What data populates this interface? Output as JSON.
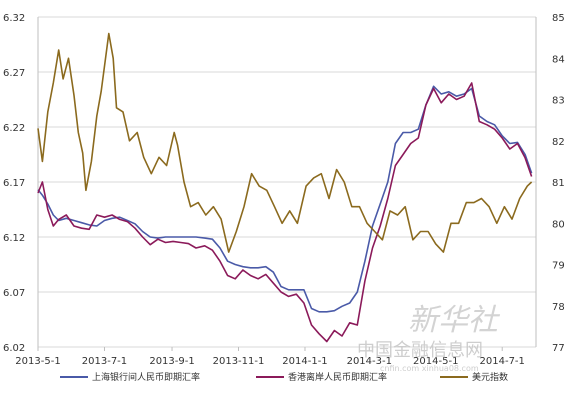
{
  "chart_data": {
    "type": "line",
    "x_ticks": [
      "2013-5-1",
      "2013-7-1",
      "2013-9-1",
      "2013-11-1",
      "2014-1-1",
      "2014-3-1",
      "2014-5-1",
      "2014-7-1"
    ],
    "x_range": [
      "2013-05-01",
      "2014-08-01"
    ],
    "y_left": {
      "ticks": [
        "6.02",
        "6.07",
        "6.12",
        "6.17",
        "6.22",
        "6.27",
        "6.32"
      ],
      "range": [
        6.02,
        6.32
      ]
    },
    "y_right": {
      "ticks": [
        "77",
        "78",
        "79",
        "80",
        "81",
        "82",
        "83",
        "84",
        "85"
      ],
      "range": [
        77,
        85
      ]
    },
    "grid": true,
    "legend_position": "bottom",
    "series": [
      {
        "name": "上海银行间人民币即期汇率",
        "axis": "left",
        "color": "#4a5aa8",
        "points": [
          [
            "2013-05-01",
            6.163
          ],
          [
            "2013-05-05",
            6.158
          ],
          [
            "2013-05-10",
            6.15
          ],
          [
            "2013-05-15",
            6.14
          ],
          [
            "2013-05-20",
            6.135
          ],
          [
            "2013-05-27",
            6.137
          ],
          [
            "2013-06-03",
            6.135
          ],
          [
            "2013-06-10",
            6.133
          ],
          [
            "2013-06-17",
            6.131
          ],
          [
            "2013-06-24",
            6.13
          ],
          [
            "2013-07-01",
            6.135
          ],
          [
            "2013-07-08",
            6.137
          ],
          [
            "2013-07-15",
            6.138
          ],
          [
            "2013-07-22",
            6.135
          ],
          [
            "2013-07-29",
            6.132
          ],
          [
            "2013-08-05",
            6.125
          ],
          [
            "2013-08-12",
            6.12
          ],
          [
            "2013-08-19",
            6.119
          ],
          [
            "2013-08-26",
            6.12
          ],
          [
            "2013-09-02",
            6.12
          ],
          [
            "2013-09-09",
            6.12
          ],
          [
            "2013-09-16",
            6.12
          ],
          [
            "2013-09-23",
            6.12
          ],
          [
            "2013-10-01",
            6.119
          ],
          [
            "2013-10-08",
            6.118
          ],
          [
            "2013-10-15",
            6.11
          ],
          [
            "2013-10-22",
            6.098
          ],
          [
            "2013-10-29",
            6.095
          ],
          [
            "2013-11-05",
            6.093
          ],
          [
            "2013-11-12",
            6.092
          ],
          [
            "2013-11-19",
            6.092
          ],
          [
            "2013-11-26",
            6.093
          ],
          [
            "2013-12-03",
            6.088
          ],
          [
            "2013-12-10",
            6.075
          ],
          [
            "2013-12-17",
            6.072
          ],
          [
            "2013-12-24",
            6.072
          ],
          [
            "2013-12-31",
            6.072
          ],
          [
            "2014-01-07",
            6.055
          ],
          [
            "2014-01-14",
            6.052
          ],
          [
            "2014-01-21",
            6.052
          ],
          [
            "2014-01-28",
            6.053
          ],
          [
            "2014-02-04",
            6.057
          ],
          [
            "2014-02-11",
            6.06
          ],
          [
            "2014-02-18",
            6.07
          ],
          [
            "2014-02-25",
            6.098
          ],
          [
            "2014-03-04",
            6.13
          ],
          [
            "2014-03-11",
            6.15
          ],
          [
            "2014-03-18",
            6.17
          ],
          [
            "2014-03-25",
            6.205
          ],
          [
            "2014-04-01",
            6.215
          ],
          [
            "2014-04-08",
            6.215
          ],
          [
            "2014-04-15",
            6.218
          ],
          [
            "2014-04-22",
            6.24
          ],
          [
            "2014-04-29",
            6.257
          ],
          [
            "2014-05-06",
            6.25
          ],
          [
            "2014-05-13",
            6.252
          ],
          [
            "2014-05-20",
            6.248
          ],
          [
            "2014-05-27",
            6.25
          ],
          [
            "2014-06-03",
            6.255
          ],
          [
            "2014-06-10",
            6.23
          ],
          [
            "2014-06-17",
            6.225
          ],
          [
            "2014-06-24",
            6.222
          ],
          [
            "2014-07-01",
            6.212
          ],
          [
            "2014-07-08",
            6.205
          ],
          [
            "2014-07-15",
            6.206
          ],
          [
            "2014-07-22",
            6.195
          ],
          [
            "2014-07-28",
            6.178
          ]
        ]
      },
      {
        "name": "香港离岸人民币即期汇率",
        "axis": "left",
        "color": "#8b1a5a",
        "points": [
          [
            "2013-05-01",
            6.16
          ],
          [
            "2013-05-05",
            6.17
          ],
          [
            "2013-05-10",
            6.145
          ],
          [
            "2013-05-15",
            6.13
          ],
          [
            "2013-05-20",
            6.136
          ],
          [
            "2013-05-27",
            6.14
          ],
          [
            "2013-06-03",
            6.13
          ],
          [
            "2013-06-10",
            6.128
          ],
          [
            "2013-06-17",
            6.127
          ],
          [
            "2013-06-24",
            6.14
          ],
          [
            "2013-07-01",
            6.138
          ],
          [
            "2013-07-08",
            6.14
          ],
          [
            "2013-07-15",
            6.136
          ],
          [
            "2013-07-22",
            6.134
          ],
          [
            "2013-07-29",
            6.128
          ],
          [
            "2013-08-05",
            6.12
          ],
          [
            "2013-08-12",
            6.113
          ],
          [
            "2013-08-19",
            6.118
          ],
          [
            "2013-08-26",
            6.115
          ],
          [
            "2013-09-02",
            6.116
          ],
          [
            "2013-09-09",
            6.115
          ],
          [
            "2013-09-16",
            6.114
          ],
          [
            "2013-09-23",
            6.11
          ],
          [
            "2013-10-01",
            6.112
          ],
          [
            "2013-10-08",
            6.108
          ],
          [
            "2013-10-15",
            6.098
          ],
          [
            "2013-10-22",
            6.085
          ],
          [
            "2013-10-29",
            6.082
          ],
          [
            "2013-11-05",
            6.09
          ],
          [
            "2013-11-12",
            6.085
          ],
          [
            "2013-11-19",
            6.082
          ],
          [
            "2013-11-26",
            6.086
          ],
          [
            "2013-12-03",
            6.078
          ],
          [
            "2013-12-10",
            6.07
          ],
          [
            "2013-12-17",
            6.066
          ],
          [
            "2013-12-24",
            6.068
          ],
          [
            "2013-12-31",
            6.06
          ],
          [
            "2014-01-07",
            6.04
          ],
          [
            "2014-01-14",
            6.032
          ],
          [
            "2014-01-21",
            6.025
          ],
          [
            "2014-01-28",
            6.035
          ],
          [
            "2014-02-04",
            6.03
          ],
          [
            "2014-02-11",
            6.042
          ],
          [
            "2014-02-18",
            6.04
          ],
          [
            "2014-02-25",
            6.08
          ],
          [
            "2014-03-04",
            6.11
          ],
          [
            "2014-03-11",
            6.13
          ],
          [
            "2014-03-18",
            6.155
          ],
          [
            "2014-03-25",
            6.185
          ],
          [
            "2014-04-01",
            6.195
          ],
          [
            "2014-04-08",
            6.205
          ],
          [
            "2014-04-15",
            6.21
          ],
          [
            "2014-04-22",
            6.24
          ],
          [
            "2014-04-29",
            6.255
          ],
          [
            "2014-05-06",
            6.242
          ],
          [
            "2014-05-13",
            6.25
          ],
          [
            "2014-05-20",
            6.245
          ],
          [
            "2014-05-27",
            6.248
          ],
          [
            "2014-06-03",
            6.26
          ],
          [
            "2014-06-10",
            6.225
          ],
          [
            "2014-06-17",
            6.222
          ],
          [
            "2014-06-24",
            6.218
          ],
          [
            "2014-07-01",
            6.21
          ],
          [
            "2014-07-08",
            6.2
          ],
          [
            "2014-07-15",
            6.205
          ],
          [
            "2014-07-22",
            6.192
          ],
          [
            "2014-07-28",
            6.175
          ]
        ]
      },
      {
        "name": "美元指数",
        "axis": "right",
        "color": "#8b6a1e",
        "points": [
          [
            "2013-05-01",
            82.3
          ],
          [
            "2013-05-05",
            81.5
          ],
          [
            "2013-05-10",
            82.7
          ],
          [
            "2013-05-15",
            83.4
          ],
          [
            "2013-05-20",
            84.2
          ],
          [
            "2013-05-24",
            83.5
          ],
          [
            "2013-05-29",
            84.0
          ],
          [
            "2013-06-03",
            83.1
          ],
          [
            "2013-06-07",
            82.2
          ],
          [
            "2013-06-11",
            81.7
          ],
          [
            "2013-06-14",
            80.8
          ],
          [
            "2013-06-19",
            81.5
          ],
          [
            "2013-06-24",
            82.6
          ],
          [
            "2013-06-28",
            83.2
          ],
          [
            "2013-07-05",
            84.6
          ],
          [
            "2013-07-09",
            84.0
          ],
          [
            "2013-07-12",
            82.8
          ],
          [
            "2013-07-18",
            82.7
          ],
          [
            "2013-07-24",
            82.0
          ],
          [
            "2013-07-31",
            82.2
          ],
          [
            "2013-08-06",
            81.6
          ],
          [
            "2013-08-13",
            81.2
          ],
          [
            "2013-08-20",
            81.6
          ],
          [
            "2013-08-27",
            81.4
          ],
          [
            "2013-09-03",
            82.2
          ],
          [
            "2013-09-06",
            81.9
          ],
          [
            "2013-09-12",
            81.0
          ],
          [
            "2013-09-18",
            80.4
          ],
          [
            "2013-09-25",
            80.5
          ],
          [
            "2013-10-02",
            80.2
          ],
          [
            "2013-10-09",
            80.4
          ],
          [
            "2013-10-16",
            80.1
          ],
          [
            "2013-10-23",
            79.3
          ],
          [
            "2013-10-30",
            79.8
          ],
          [
            "2013-11-06",
            80.4
          ],
          [
            "2013-11-13",
            81.2
          ],
          [
            "2013-11-20",
            80.9
          ],
          [
            "2013-11-27",
            80.8
          ],
          [
            "2013-12-04",
            80.4
          ],
          [
            "2013-12-11",
            80.0
          ],
          [
            "2013-12-18",
            80.3
          ],
          [
            "2013-12-25",
            80.0
          ],
          [
            "2014-01-02",
            80.9
          ],
          [
            "2014-01-09",
            81.1
          ],
          [
            "2014-01-16",
            81.2
          ],
          [
            "2014-01-23",
            80.6
          ],
          [
            "2014-01-30",
            81.3
          ],
          [
            "2014-02-06",
            81.0
          ],
          [
            "2014-02-13",
            80.4
          ],
          [
            "2014-02-20",
            80.4
          ],
          [
            "2014-02-27",
            80.0
          ],
          [
            "2014-03-06",
            79.8
          ],
          [
            "2014-03-13",
            79.6
          ],
          [
            "2014-03-20",
            80.3
          ],
          [
            "2014-03-27",
            80.2
          ],
          [
            "2014-04-03",
            80.4
          ],
          [
            "2014-04-10",
            79.6
          ],
          [
            "2014-04-17",
            79.8
          ],
          [
            "2014-04-24",
            79.8
          ],
          [
            "2014-05-01",
            79.5
          ],
          [
            "2014-05-08",
            79.3
          ],
          [
            "2014-05-15",
            80.0
          ],
          [
            "2014-05-22",
            80.0
          ],
          [
            "2014-05-29",
            80.5
          ],
          [
            "2014-06-05",
            80.5
          ],
          [
            "2014-06-12",
            80.6
          ],
          [
            "2014-06-19",
            80.4
          ],
          [
            "2014-06-26",
            80.0
          ],
          [
            "2014-07-03",
            80.4
          ],
          [
            "2014-07-10",
            80.1
          ],
          [
            "2014-07-17",
            80.6
          ],
          [
            "2014-07-24",
            80.9
          ],
          [
            "2014-07-28",
            81.0
          ]
        ]
      }
    ]
  },
  "watermark": {
    "logo": "新华社",
    "site": "中国金融信息网",
    "url": "cnfin.com   xinhua08.com"
  }
}
